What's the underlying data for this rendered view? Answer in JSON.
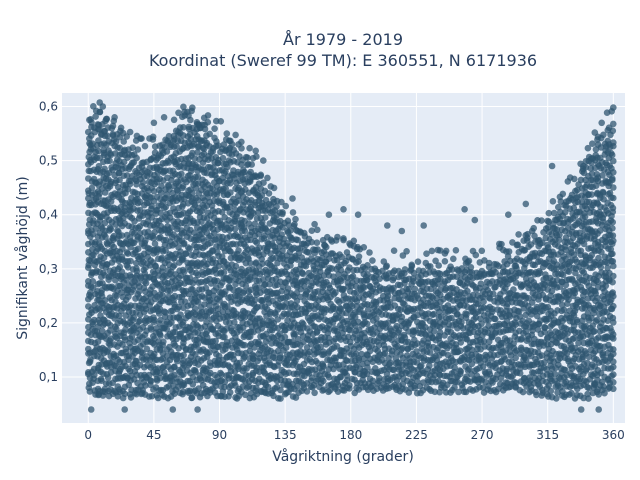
{
  "chart_data": {
    "type": "scatter",
    "title_line1": "År 1979 - 2019",
    "title_line2": "Koordinat (Sweref 99 TM): E 360551, N 6171936",
    "xlabel": "Vågriktning (grader)",
    "ylabel": "Signifikant våghöjd (m)",
    "xlim": [
      -18,
      368
    ],
    "ylim": [
      0.015,
      0.625
    ],
    "x_ticks": [
      0,
      45,
      90,
      135,
      180,
      225,
      270,
      315,
      360
    ],
    "x_tick_labels": [
      "0",
      "45",
      "90",
      "135",
      "180",
      "225",
      "270",
      "315",
      "360"
    ],
    "y_ticks": [
      0.1,
      0.2,
      0.3,
      0.4,
      0.5,
      0.6
    ],
    "y_tick_labels": [
      "0,1",
      "0,2",
      "0,3",
      "0,4",
      "0,5",
      "0,6"
    ],
    "grid": true,
    "marker_color": "#2f5570",
    "plot_bg": "#e5ecf6",
    "envelope": {
      "x": [
        0,
        5,
        10,
        20,
        30,
        40,
        50,
        60,
        70,
        80,
        90,
        100,
        110,
        120,
        130,
        140,
        150,
        160,
        170,
        180,
        190,
        200,
        210,
        220,
        230,
        240,
        250,
        260,
        270,
        280,
        290,
        300,
        310,
        320,
        330,
        340,
        350,
        355,
        360
      ],
      "upper": [
        0.56,
        0.57,
        0.58,
        0.55,
        0.52,
        0.5,
        0.54,
        0.56,
        0.57,
        0.56,
        0.54,
        0.52,
        0.5,
        0.46,
        0.42,
        0.38,
        0.36,
        0.34,
        0.33,
        0.32,
        0.31,
        0.3,
        0.3,
        0.3,
        0.3,
        0.3,
        0.3,
        0.3,
        0.3,
        0.31,
        0.32,
        0.34,
        0.36,
        0.4,
        0.44,
        0.48,
        0.53,
        0.56,
        0.57
      ],
      "lower": [
        0.07,
        0.06,
        0.06,
        0.06,
        0.06,
        0.06,
        0.06,
        0.06,
        0.06,
        0.06,
        0.06,
        0.06,
        0.06,
        0.06,
        0.06,
        0.06,
        0.07,
        0.07,
        0.07,
        0.07,
        0.07,
        0.07,
        0.07,
        0.07,
        0.07,
        0.07,
        0.07,
        0.07,
        0.07,
        0.07,
        0.07,
        0.07,
        0.06,
        0.06,
        0.06,
        0.06,
        0.06,
        0.07,
        0.07
      ]
    },
    "outliers": [
      {
        "x": 2,
        "y": 0.04
      },
      {
        "x": 8,
        "y": 0.59
      },
      {
        "x": 10,
        "y": 0.6
      },
      {
        "x": 25,
        "y": 0.04
      },
      {
        "x": 45,
        "y": 0.57
      },
      {
        "x": 52,
        "y": 0.58
      },
      {
        "x": 58,
        "y": 0.04
      },
      {
        "x": 66,
        "y": 0.59
      },
      {
        "x": 68,
        "y": 0.59
      },
      {
        "x": 75,
        "y": 0.04
      },
      {
        "x": 95,
        "y": 0.55
      },
      {
        "x": 103,
        "y": 0.53
      },
      {
        "x": 120,
        "y": 0.5
      },
      {
        "x": 140,
        "y": 0.43
      },
      {
        "x": 165,
        "y": 0.4
      },
      {
        "x": 175,
        "y": 0.41
      },
      {
        "x": 185,
        "y": 0.4
      },
      {
        "x": 205,
        "y": 0.38
      },
      {
        "x": 215,
        "y": 0.37
      },
      {
        "x": 230,
        "y": 0.38
      },
      {
        "x": 258,
        "y": 0.41
      },
      {
        "x": 265,
        "y": 0.39
      },
      {
        "x": 288,
        "y": 0.4
      },
      {
        "x": 300,
        "y": 0.42
      },
      {
        "x": 318,
        "y": 0.49
      },
      {
        "x": 338,
        "y": 0.04
      },
      {
        "x": 350,
        "y": 0.04
      },
      {
        "x": 352,
        "y": 0.57
      }
    ]
  }
}
